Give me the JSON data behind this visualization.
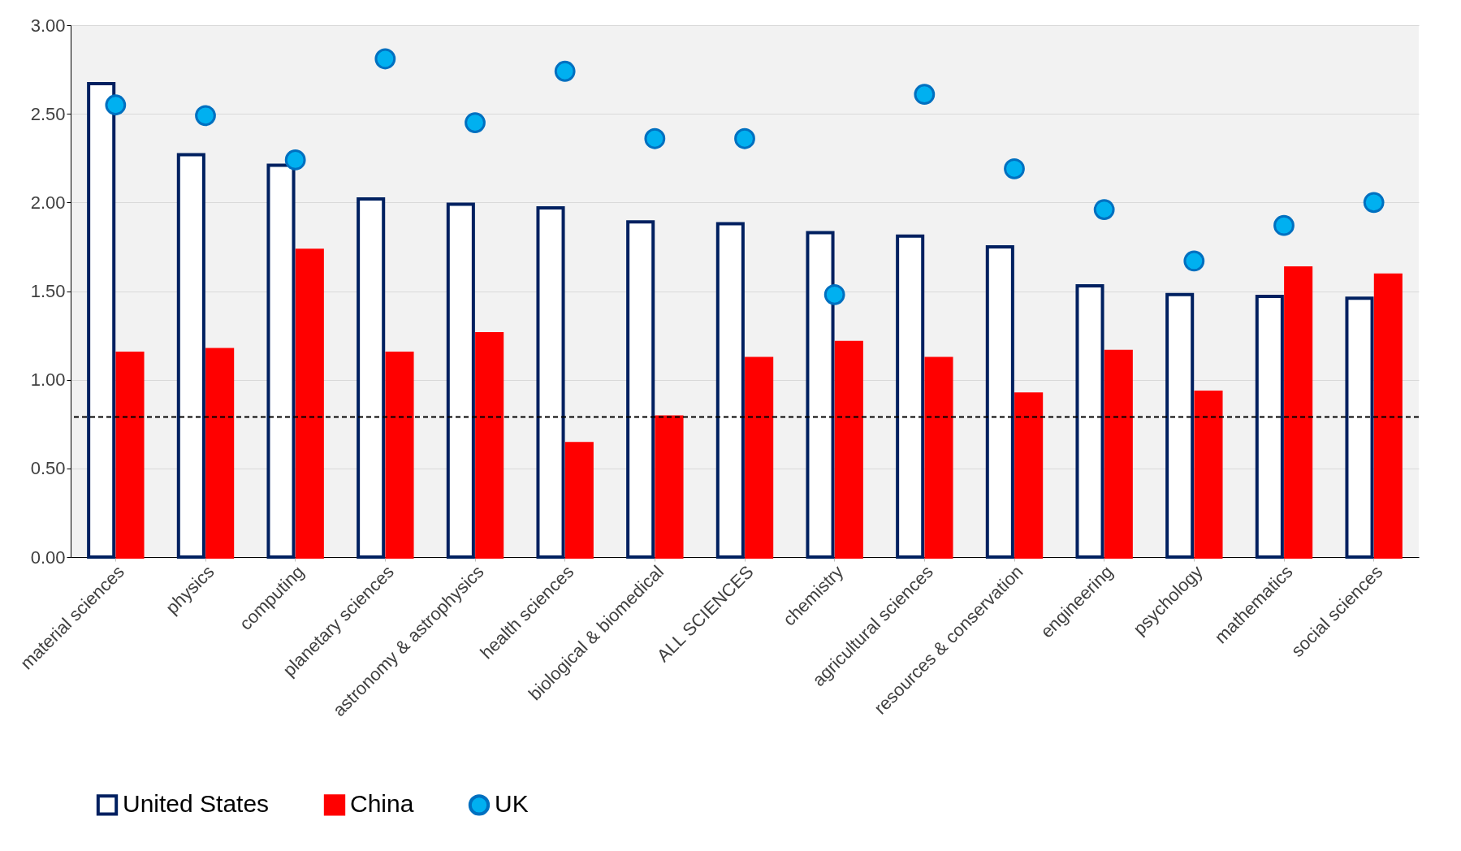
{
  "chart_data": {
    "type": "bar",
    "categories": [
      "material sciences",
      "physics",
      "computing",
      "planetary sciences",
      "astronomy & astrophysics",
      "health sciences",
      "biological & biomedical",
      "ALL SCIENCES",
      "chemistry",
      "agricultural sciences",
      "resources & conservation",
      "engineering",
      "psychology",
      "mathematics",
      "social sciences"
    ],
    "series": [
      {
        "name": "United States",
        "color": "#002060",
        "values": [
          2.67,
          2.27,
          2.21,
          2.02,
          1.99,
          1.97,
          1.89,
          1.88,
          1.83,
          1.81,
          1.75,
          1.53,
          1.48,
          1.47,
          1.46
        ]
      },
      {
        "name": "China",
        "color": "#ff0000",
        "values": [
          1.15,
          1.17,
          1.73,
          1.15,
          1.26,
          0.64,
          0.79,
          1.12,
          1.21,
          1.12,
          0.92,
          1.16,
          0.93,
          1.63,
          1.59
        ]
      },
      {
        "name": "UK",
        "type": "scatter",
        "color": "#00b0f0",
        "values": [
          2.55,
          2.49,
          2.24,
          2.81,
          2.45,
          2.74,
          2.36,
          2.36,
          1.48,
          2.61,
          2.19,
          1.96,
          1.67,
          1.87,
          2.0
        ]
      }
    ],
    "ylim": [
      0,
      3
    ],
    "yticks": [
      {
        "value": 0,
        "label": "0.00"
      },
      {
        "value": 0.5,
        "label": "0.50"
      },
      {
        "value": 1,
        "label": "1.00"
      },
      {
        "value": 1.5,
        "label": "1.50"
      },
      {
        "value": 2,
        "label": "2.00"
      },
      {
        "value": 2.5,
        "label": "2.50"
      },
      {
        "value": 3,
        "label": "3.00"
      }
    ],
    "ref_lines": [
      {
        "axis": "y",
        "value": 0.79,
        "color": "#000000",
        "line_style": "dashed"
      }
    ],
    "grid": "y",
    "legend": "bottom",
    "marker": "circle"
  }
}
